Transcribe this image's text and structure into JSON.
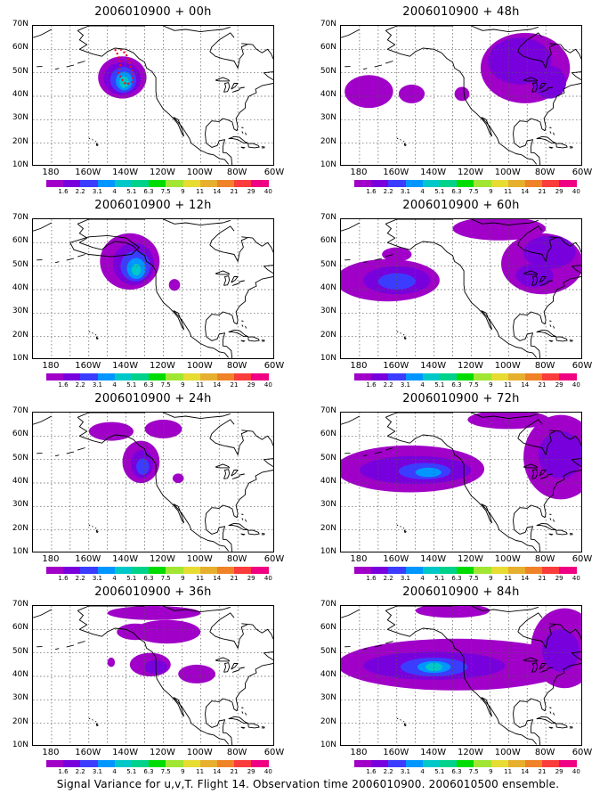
{
  "panels": [
    {
      "title": "2006010900 + 00h"
    },
    {
      "title": "2006010900 + 48h"
    },
    {
      "title": "2006010900 + 12h"
    },
    {
      "title": "2006010900 + 60h"
    },
    {
      "title": "2006010900 + 24h"
    },
    {
      "title": "2006010900 + 72h"
    },
    {
      "title": "2006010900 + 36h"
    },
    {
      "title": "2006010900 + 84h"
    }
  ],
  "axes": {
    "y_labels": [
      "70N",
      "60N",
      "50N",
      "40N",
      "30N",
      "20N",
      "10N"
    ],
    "x_labels": [
      "180",
      "160W",
      "140W",
      "120W",
      "100W",
      "80W",
      "60W"
    ]
  },
  "colorbar": {
    "labels": [
      "1.6",
      "2.2",
      "3.1",
      "4",
      "5.1",
      "6.3",
      "7.5",
      "9",
      "11",
      "14",
      "21",
      "29",
      "40"
    ],
    "colors": [
      "#a000c8",
      "#7800dc",
      "#3c3cff",
      "#0096ff",
      "#00c8c8",
      "#00d28c",
      "#00dc00",
      "#a0e632",
      "#e6dc32",
      "#e6af2d",
      "#f08228",
      "#fa3c3c",
      "#f00082"
    ]
  },
  "caption": "Signal Variance for u,v,T. Flight 14. Observation time 2006010900. 2006010500 ensemble."
}
